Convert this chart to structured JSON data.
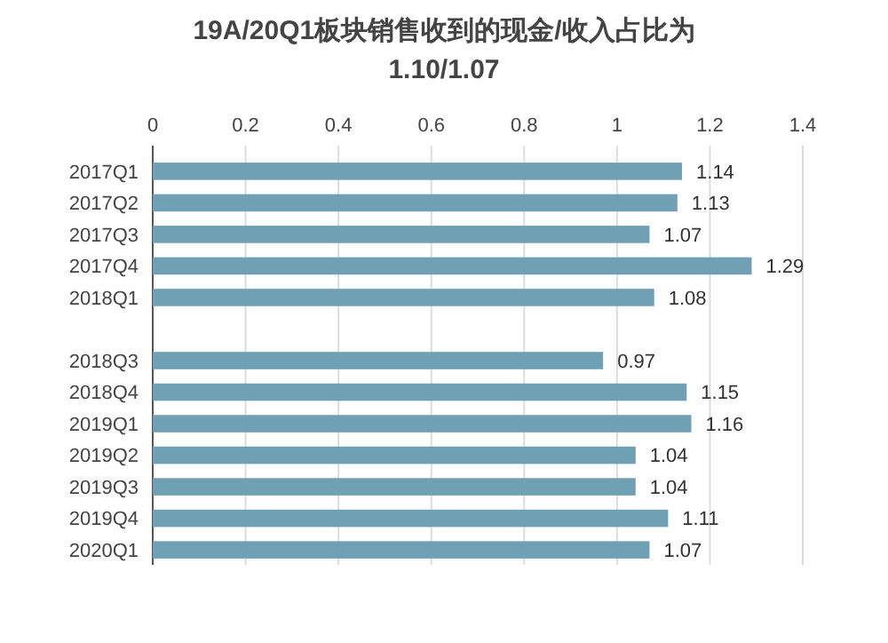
{
  "chart_data": {
    "type": "bar",
    "orientation": "horizontal",
    "title": "19A/20Q1板块销售收到的现金/收入占比为 1.10/1.07",
    "categories": [
      "2017Q1",
      "2017Q2",
      "2017Q3",
      "2017Q4",
      "2018Q1",
      null,
      "2018Q3",
      "2018Q4",
      "2019Q1",
      "2019Q2",
      "2019Q3",
      "2019Q4",
      "2020Q1"
    ],
    "values": [
      1.14,
      1.13,
      1.07,
      1.29,
      1.08,
      null,
      0.97,
      1.15,
      1.16,
      1.04,
      1.04,
      1.11,
      1.07
    ],
    "color": "#6fa0b3",
    "xlim": [
      0,
      1.4
    ],
    "xticks": [
      0,
      0.2,
      0.4,
      0.6,
      0.8,
      1,
      1.2,
      1.4
    ],
    "grid": "x",
    "data_labels": true
  }
}
